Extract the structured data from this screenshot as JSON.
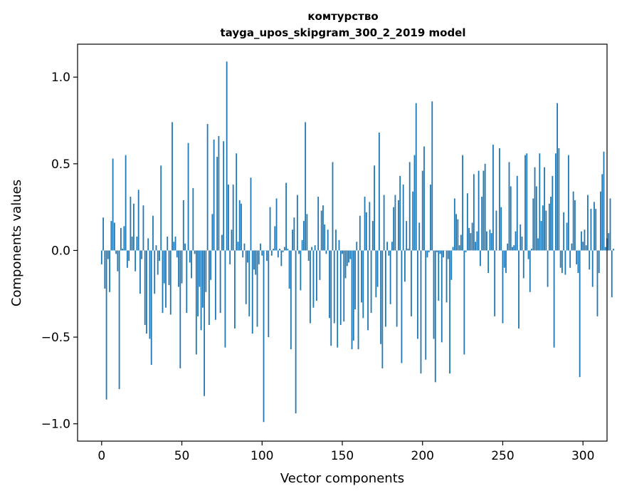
{
  "chart_data": {
    "type": "bar",
    "title": "комтурство",
    "subtitle": "tayga_upos_skipgram_300_2_2019 model",
    "xlabel": "Vector components",
    "ylabel": "Components values",
    "xlim": [
      -15,
      315
    ],
    "ylim": [
      -1.1,
      1.19
    ],
    "xticks": [
      0,
      50,
      100,
      150,
      200,
      250,
      300
    ],
    "xtick_labels": [
      "0",
      "50",
      "100",
      "150",
      "200",
      "250",
      "300"
    ],
    "yticks": [
      -1.0,
      -0.5,
      0.0,
      0.5,
      1.0
    ],
    "ytick_labels": [
      "−1.0",
      "−0.5",
      "0.0",
      "0.5",
      "1.0"
    ],
    "grid": false,
    "bar_color": "#1f77b4",
    "series": [
      {
        "values": [
          -0.08,
          0.19,
          -0.22,
          -0.86,
          -0.05,
          -0.24,
          0.17,
          0.53,
          0.16,
          -0.02,
          -0.12,
          -0.8,
          0.13,
          0.01,
          0.14,
          0.55,
          -0.1,
          -0.06,
          0.31,
          0.08,
          0.27,
          -0.12,
          0.08,
          0.35,
          -0.25,
          -0.05,
          0.26,
          -0.43,
          -0.48,
          0.07,
          -0.51,
          -0.66,
          0.2,
          -0.25,
          0.03,
          -0.14,
          -0.06,
          0.49,
          -0.36,
          -0.19,
          -0.33,
          0.08,
          -0.2,
          -0.37,
          0.74,
          0.05,
          0.08,
          -0.04,
          -0.21,
          -0.68,
          -0.19,
          0.29,
          0.04,
          -0.36,
          0.62,
          -0.07,
          -0.16,
          0.36,
          -0.02,
          -0.6,
          -0.38,
          -0.21,
          -0.46,
          -0.33,
          -0.84,
          -0.24,
          0.73,
          -0.43,
          -0.17,
          0.21,
          0.64,
          -0.4,
          0.54,
          0.66,
          -0.36,
          0.09,
          0.63,
          -0.56,
          1.09,
          0.38,
          -0.08,
          0.12,
          0.38,
          -0.45,
          0.56,
          0.05,
          0.29,
          0.27,
          -0.04,
          0.04,
          -0.31,
          -0.07,
          -0.38,
          0.42,
          -0.48,
          -0.11,
          -0.14,
          -0.44,
          -0.08,
          0.04,
          -0.03,
          -0.99,
          0.0,
          -0.06,
          -0.5,
          0.25,
          -0.03,
          0.01,
          0.14,
          0.3,
          -0.04,
          0.01,
          -0.09,
          -0.01,
          0.02,
          0.39,
          0.01,
          -0.22,
          -0.57,
          0.12,
          0.19,
          -0.94,
          0.32,
          -0.02,
          -0.23,
          0.06,
          0.17,
          0.74,
          0.21,
          -0.06,
          -0.42,
          0.02,
          -0.33,
          0.03,
          -0.29,
          0.31,
          -0.17,
          0.23,
          0.26,
          0.15,
          -0.02,
          0.12,
          -0.39,
          -0.55,
          0.51,
          -0.42,
          0.12,
          -0.56,
          0.06,
          -0.43,
          -0.02,
          -0.41,
          -0.16,
          -0.09,
          -0.07,
          -0.05,
          -0.57,
          -0.52,
          -0.34,
          0.05,
          -0.57,
          0.2,
          -0.3,
          -0.39,
          0.31,
          0.22,
          -0.46,
          0.28,
          -0.36,
          0.17,
          0.49,
          -0.27,
          -0.21,
          0.68,
          -0.54,
          -0.68,
          0.32,
          -0.44,
          0.05,
          -0.03,
          -0.31,
          0.05,
          0.25,
          0.32,
          -0.44,
          0.29,
          0.43,
          -0.65,
          0.38,
          -0.18,
          0.17,
          0.01,
          0.51,
          -0.38,
          0.34,
          0.55,
          0.85,
          -0.51,
          0.16,
          -0.71,
          0.46,
          0.6,
          -0.63,
          -0.04,
          -0.01,
          0.38,
          0.86,
          -0.51,
          -0.76,
          -0.01,
          -0.29,
          -0.02,
          -0.53,
          -0.04,
          0.0,
          -0.3,
          -0.05,
          -0.71,
          -0.17,
          0.02,
          0.3,
          0.21,
          0.18,
          0.03,
          0.09,
          0.55,
          -0.6,
          -0.01,
          0.33,
          0.13,
          0.1,
          0.16,
          0.44,
          0.05,
          0.11,
          0.46,
          -0.09,
          0.31,
          0.46,
          0.5,
          0.11,
          -0.13,
          0.12,
          0.1,
          0.61,
          -0.38,
          0.23,
          0.0,
          0.59,
          0.25,
          -0.42,
          -0.1,
          -0.13,
          0.04,
          0.51,
          0.37,
          0.02,
          0.03,
          0.11,
          0.43,
          -0.45,
          0.15,
          0.08,
          -0.16,
          0.55,
          0.56,
          -0.05,
          -0.24,
          0.01,
          0.3,
          0.48,
          0.37,
          0.07,
          0.56,
          0.17,
          0.26,
          0.48,
          0.23,
          -0.21,
          0.27,
          0.31,
          0.43,
          -0.56,
          0.56,
          0.85,
          0.59,
          -0.1,
          -0.13,
          0.22,
          -0.14,
          0.16,
          0.55,
          -0.1,
          0.04,
          0.34,
          0.29,
          -0.08,
          -0.13,
          -0.73,
          0.11,
          0.05,
          0.12,
          0.03,
          0.32,
          -0.11,
          0.24,
          -0.21,
          0.28,
          0.24,
          -0.38,
          -0.13,
          0.34,
          0.44,
          0.57,
          0.02,
          0.07,
          0.1,
          0.3,
          -0.27,
          0.01
        ]
      }
    ]
  }
}
